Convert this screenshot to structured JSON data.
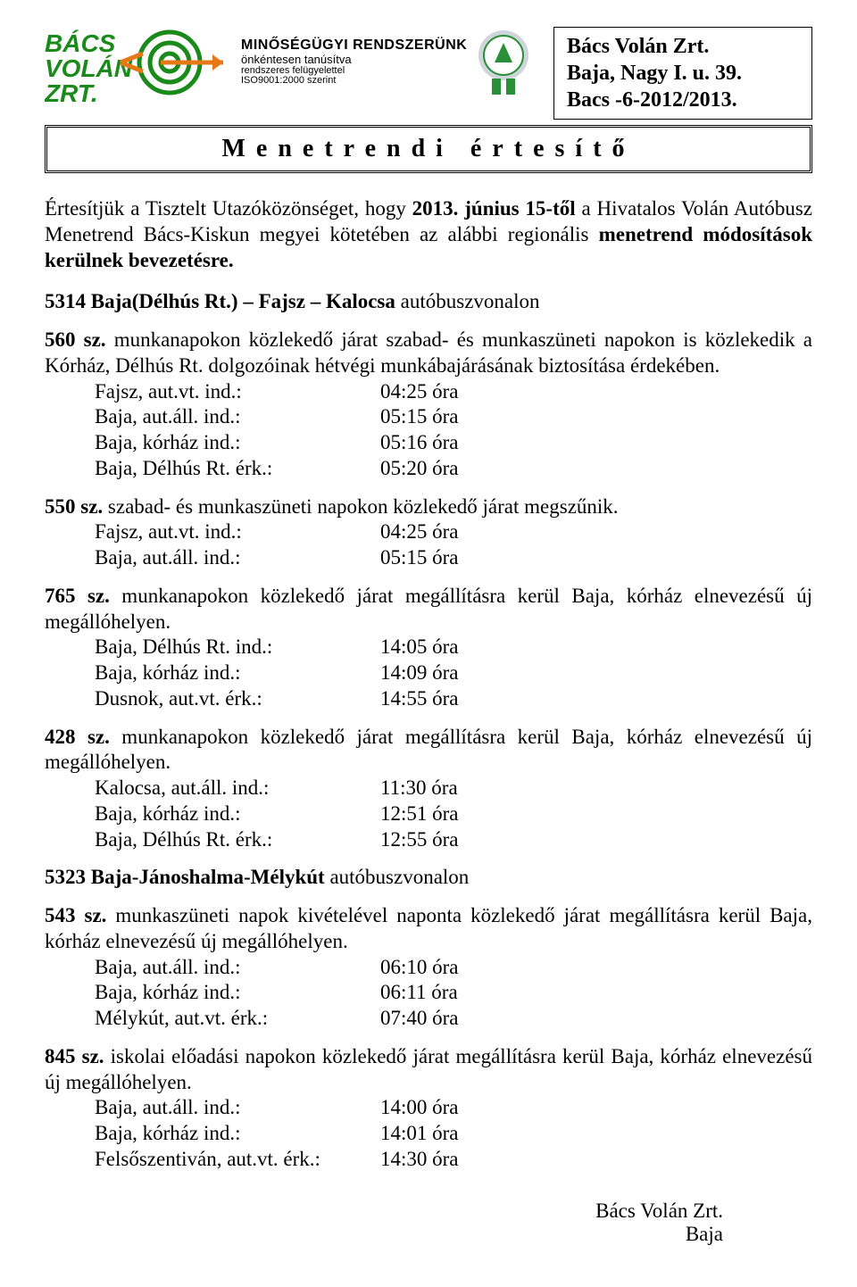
{
  "logo": {
    "line1": "BÁCS",
    "line2": "VOLÁN",
    "line3": "ZRT.",
    "color_green": "#1a8a1a",
    "color_orange": "#e67817"
  },
  "cert": {
    "title": "MINŐSÉGÜGYI RENDSZERÜNK",
    "sub1": "önkéntesen tanúsítva",
    "sub2": "rendszeres felügyelettel",
    "sub3": "ISO9001:2000 szerint",
    "badge_color": "#2b8f3a",
    "badge_band": "#cfd6db"
  },
  "org": {
    "line1": "Bács Volán Zrt.",
    "line2": "Baja, Nagy I. u. 39.",
    "line3": "Bacs -6-2012/2013."
  },
  "title": "Menetrendi  értesítő",
  "intro": {
    "p1a": "Értesítjük a Tisztelt Utazóközönséget, hogy ",
    "p1b": "2013. június 15-től",
    "p1c": " a Hivatalos Volán Autóbusz Menetrend Bács-Kiskun megyei kötetében az alábbi regionális ",
    "p1d": "menetrend módosítások kerülnek bevezetésre."
  },
  "routes": [
    {
      "head_bold": "5314 Baja(Délhús Rt.) – Fajsz – Kalocsa",
      "head_rest": " autóbuszvonalon",
      "services": [
        {
          "num": "560 sz.",
          "desc": " munkanapokon közlekedő járat szabad- és munkaszüneti napokon is közlekedik a Kórház, Délhús Rt. dolgozóinak hétvégi munkábajárásának biztosítása érdekében.",
          "rows": [
            {
              "label": "Fajsz, aut.vt. ind.:",
              "value": "04:25 óra"
            },
            {
              "label": "Baja, aut.áll. ind.:",
              "value": "05:15 óra"
            },
            {
              "label": "Baja, kórház ind.:",
              "value": "05:16 óra"
            },
            {
              "label": "Baja, Délhús Rt. érk.:",
              "value": "05:20 óra"
            }
          ]
        },
        {
          "num": "550 sz.",
          "desc": " szabad- és munkaszüneti napokon közlekedő járat megszűnik.",
          "rows": [
            {
              "label": "Fajsz, aut.vt. ind.:",
              "value": "04:25 óra"
            },
            {
              "label": "Baja, aut.áll. ind.:",
              "value": "05:15 óra"
            }
          ]
        },
        {
          "num": "765 sz.",
          "desc": " munkanapokon közlekedő járat megállításra kerül Baja, kórház elnevezésű új megállóhelyen.",
          "rows": [
            {
              "label": "Baja, Délhús Rt. ind.:",
              "value": "14:05 óra"
            },
            {
              "label": "Baja, kórház ind.:",
              "value": "14:09 óra"
            },
            {
              "label": "Dusnok, aut.vt. érk.:",
              "value": "14:55 óra"
            }
          ]
        },
        {
          "num": "428 sz.",
          "desc": " munkanapokon közlekedő járat megállításra kerül Baja, kórház elnevezésű új megállóhelyen.",
          "rows": [
            {
              "label": "Kalocsa, aut.áll. ind.:",
              "value": "11:30 óra"
            },
            {
              "label": "Baja, kórház ind.:",
              "value": "12:51 óra"
            },
            {
              "label": "Baja, Délhús Rt. érk.:",
              "value": "12:55 óra"
            }
          ]
        }
      ]
    },
    {
      "head_bold": "5323 Baja-Jánoshalma-Mélykút",
      "head_rest": " autóbuszvonalon",
      "services": [
        {
          "num": "543 sz.",
          "desc": " munkaszüneti napok kivételével naponta közlekedő járat megállításra kerül Baja, kórház elnevezésű új megállóhelyen.",
          "rows": [
            {
              "label": "Baja, aut.áll. ind.:",
              "value": "06:10 óra"
            },
            {
              "label": "Baja, kórház ind.:",
              "value": "06:11 óra"
            },
            {
              "label": "Mélykút, aut.vt. érk.:",
              "value": "07:40 óra"
            }
          ]
        },
        {
          "num": "845 sz.",
          "desc": " iskolai előadási napokon közlekedő járat megállításra kerül Baja, kórház elnevezésű új megállóhelyen.",
          "rows": [
            {
              "label": "Baja, aut.áll. ind.:",
              "value": "14:00 óra"
            },
            {
              "label": "Baja, kórház ind.:",
              "value": "14:01 óra"
            },
            {
              "label": "Felsőszentiván, aut.vt. érk.:",
              "value": "14:30 óra"
            }
          ]
        }
      ]
    }
  ],
  "footer": {
    "line1": "Bács Volán Zrt.",
    "line2": "Baja"
  }
}
